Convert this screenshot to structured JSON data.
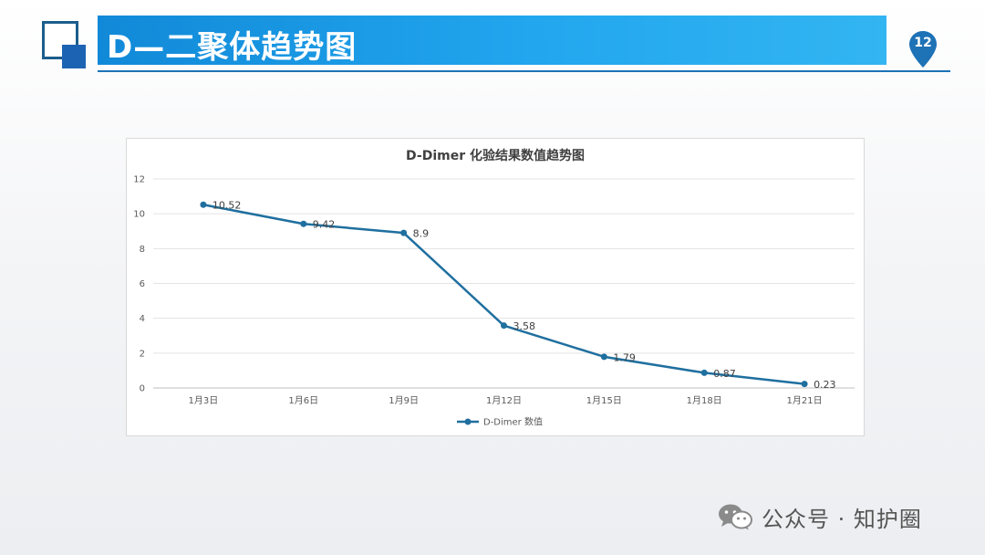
{
  "slide": {
    "title": "D—二聚体趋势图",
    "page_number": "12"
  },
  "watermark": {
    "text": "公众号 · 知护圈"
  },
  "colors": {
    "title_bar": "#1a9be6",
    "accent": "#1e72b6",
    "series_line": "#1f6f9f"
  },
  "chart_data": {
    "type": "line",
    "title": "D-Dimer 化验结果数值趋势图",
    "categories": [
      "1月3日",
      "1月6日",
      "1月9日",
      "1月12日",
      "1月15日",
      "1月18日",
      "1月21日"
    ],
    "series": [
      {
        "name": "D-Dimer 数值",
        "values": [
          10.52,
          9.42,
          8.9,
          3.58,
          1.79,
          0.87,
          0.23
        ],
        "data_labels": [
          "10.52",
          "9.42",
          "8.9",
          "3.58",
          "1.79",
          "0.87",
          "0.23"
        ]
      }
    ],
    "ylim": [
      0,
      12
    ],
    "yticks": [
      "0",
      "2",
      "4",
      "6",
      "8",
      "10",
      "12"
    ],
    "grid": true,
    "legend_position": "bottom",
    "xlabel": "",
    "ylabel": ""
  }
}
